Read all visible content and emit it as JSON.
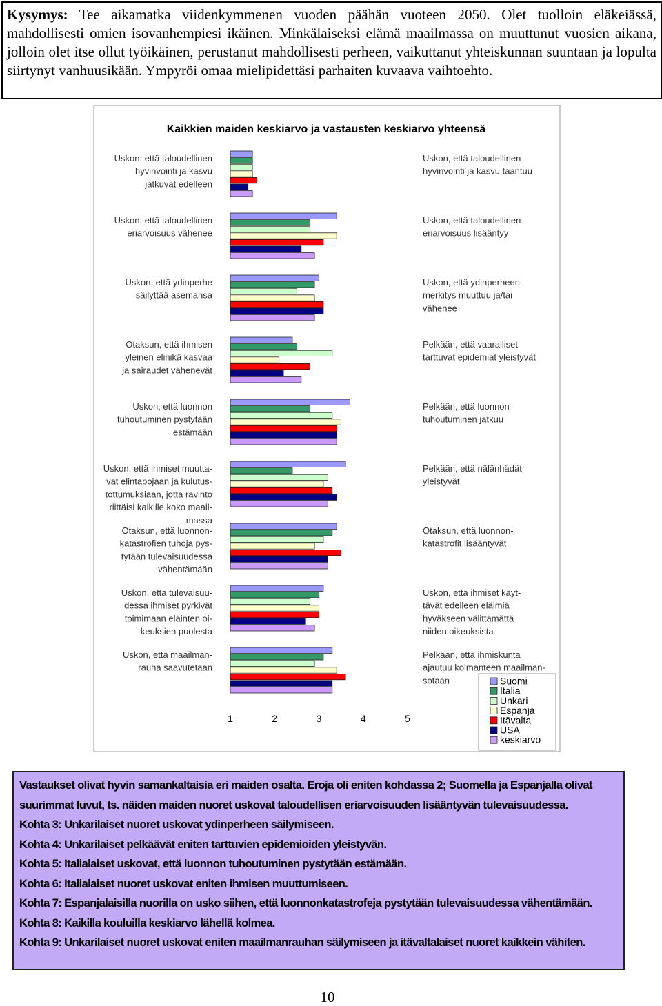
{
  "question": {
    "label": "Kysymys:",
    "text": "Tee aikamatka viidenkymmenen vuoden päähän vuoteen 2050. Olet tuolloin eläkeiässä, mahdollisesti omien isovanhempiesi ikäinen. Minkälaiseksi elämä maailmassa on muuttunut vuosien aikana, jolloin olet itse ollut työikäinen, perustanut mahdollisesti perheen, vaikuttanut yhteiskunnan suuntaan ja lopulta siirtynyt vanhuusikään. Ympyröi omaa mielipidettäsi parhaiten kuvaava vaihtoehto."
  },
  "chart_data": {
    "type": "bar",
    "title": "Kaikkien maiden keskiarvo ja vastausten keskiarvo yhteensä",
    "left_labels": [
      [
        "Uskon, että taloudellinen",
        "hyvinvointi ja kasvu",
        "jatkuvat edelleen"
      ],
      [
        "Uskon, että taloudellinen",
        "eriarvoisuus vähenee"
      ],
      [
        "Uskon, että ydinperhe",
        "säilyttää asemansa"
      ],
      [
        "Otaksun, että ihmisen",
        "yleinen elinikä kasvaa",
        "ja sairaudet vähenevät"
      ],
      [
        "Uskon, että luonnon",
        "tuhoutuminen pystytään",
        "estämään"
      ],
      [
        "Uskon, että ihmiset muutta-",
        "vat elintapojaan ja kulutus-",
        "tottumuksiaan, jotta ravinto",
        "riittäisi kaikille koko maail-",
        "massa"
      ],
      [
        "Otaksun, että luonnon-",
        "katastrofien tuhoja pys-",
        "tytään tulevaisuudessa",
        "vähentämään"
      ],
      [
        "Uskon, että tulevaisuu-",
        "dessa ihmiset pyrkivät",
        "toimimaan eläinten oi-",
        "keuksien puolesta"
      ],
      [
        "Uskon, että maailman-",
        "rauha saavutetaan"
      ]
    ],
    "right_labels": [
      [
        "Uskon, että taloudellinen",
        "hyvinvointi ja kasvu taantuu"
      ],
      [
        "Uskon, että taloudellinen",
        "eriarvoisuus lisääntyy"
      ],
      [
        "Uskon, että ydinperheen",
        "merkitys muuttuu ja/tai",
        "vähenee"
      ],
      [
        "Pelkään, että vaaralliset",
        "tarttuvat epidemiat yleistyvät"
      ],
      [
        "Pelkään, että luonnon",
        "tuhoutuminen jatkuu"
      ],
      [
        "Pelkään, että nälänhädät",
        "yleistyvät"
      ],
      [
        "Otaksun, että luonnon-",
        "katastrofit lisääntyvät"
      ],
      [
        "Uskon, että ihmiset käyt-",
        "tävät edelleen eläimiä",
        "hyväkseen välittämättä",
        "niiden oikeuksista"
      ],
      [
        "Pelkään, että ihmiskunta",
        "ajautuu kolmanteen maailman-",
        "sotaan"
      ]
    ],
    "xlim": [
      1,
      5
    ],
    "xticks": [
      1,
      2,
      3,
      4,
      5
    ],
    "series": [
      {
        "name": "Suomi",
        "color": "#9999ff",
        "values": [
          1.5,
          3.4,
          3.0,
          2.4,
          3.7,
          3.6,
          3.4,
          3.1,
          3.3
        ]
      },
      {
        "name": "Italia",
        "color": "#339966",
        "values": [
          1.5,
          2.8,
          2.9,
          2.5,
          2.8,
          2.4,
          3.3,
          3.0,
          3.1
        ]
      },
      {
        "name": "Unkari",
        "color": "#ccffcc",
        "values": [
          1.5,
          2.8,
          2.5,
          3.3,
          3.3,
          3.2,
          3.1,
          2.8,
          2.9
        ]
      },
      {
        "name": "Espanja",
        "color": "#ffffcc",
        "values": [
          1.5,
          3.4,
          2.9,
          2.1,
          3.5,
          3.1,
          2.9,
          3.0,
          3.4
        ]
      },
      {
        "name": "Itävalta",
        "color": "#ff0000",
        "values": [
          1.6,
          3.1,
          3.1,
          2.8,
          3.4,
          3.3,
          3.5,
          3.0,
          3.6
        ]
      },
      {
        "name": "USA",
        "color": "#000080",
        "values": [
          1.4,
          2.6,
          3.1,
          2.2,
          3.4,
          3.4,
          3.2,
          2.7,
          3.3
        ]
      },
      {
        "name": "keskiarvo",
        "color": "#cc99ff",
        "values": [
          1.5,
          2.9,
          2.9,
          2.6,
          3.4,
          3.2,
          3.2,
          2.9,
          3.3
        ]
      }
    ]
  },
  "summary": [
    "Vastaukset olivat hyvin samankaltaisia eri maiden osalta. Eroja oli eniten kohdassa 2; Suomella ja Espanjalla olivat suurimmat luvut, ts. näiden maiden nuoret uskovat taloudellisen eriarvoisuuden lisääntyvän tulevaisuudessa.",
    "Kohta 3: Unkarilaiset nuoret uskovat ydinperheen säilymiseen.",
    "Kohta 4: Unkarilaiset pelkäävät eniten tarttuvien epidemioiden yleistyvän.",
    "Kohta 5: Italialaiset uskovat, että luonnon tuhoutuminen pystytään estämään.",
    "Kohta 6: Italialaiset nuoret uskovat eniten ihmisen muuttumiseen.",
    "Kohta 7: Espanjalaisilla nuorilla on usko siihen, että luonnonkatastrofeja pystytään tulevaisuudessa vähentämään.",
    "Kohta 8: Kaikilla kouluilla keskiarvo lähellä kolmea.",
    "Kohta 9: Unkarilaiset nuoret uskovat eniten maailmanrauhan säilymiseen ja itävaltalaiset nuoret kaikkein vähiten."
  ],
  "page_number": "10"
}
